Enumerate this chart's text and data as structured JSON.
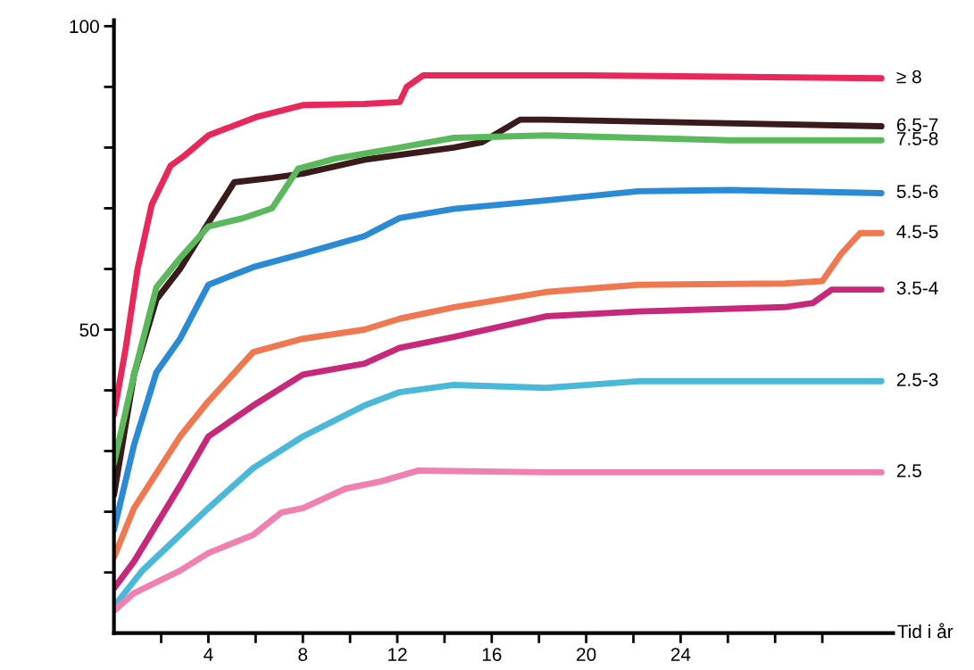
{
  "chart_data": {
    "type": "line",
    "xlabel": "Tid i år",
    "legend": false,
    "grid": false,
    "marker": "none",
    "line_style": "solid",
    "xlim": [
      0,
      33
    ],
    "ylim": [
      0,
      101
    ],
    "xticks": [
      {
        "value": 2,
        "label": null
      },
      4,
      {
        "value": 6,
        "label": null
      },
      8,
      {
        "value": 10,
        "label": null
      },
      12,
      {
        "value": 14,
        "label": null
      },
      16,
      {
        "value": 18,
        "label": null
      },
      20,
      {
        "value": 22,
        "label": null
      },
      24,
      {
        "value": 26,
        "label": null
      },
      {
        "value": 28,
        "label": null
      },
      {
        "value": 30,
        "label": null
      }
    ],
    "yticks": [
      {
        "value": 10,
        "label": null
      },
      {
        "value": 20,
        "label": null
      },
      {
        "value": 30,
        "label": null
      },
      {
        "value": 40,
        "label": null
      },
      50,
      {
        "value": 60,
        "label": null
      },
      {
        "value": 70,
        "label": null
      },
      {
        "value": 80,
        "label": null
      },
      {
        "value": 90,
        "label": null
      },
      100
    ],
    "series": [
      {
        "name": "≥ 8",
        "color": "#e8285a",
        "x": [
          0,
          0.5,
          1,
          1.6,
          2.4,
          3,
          4,
          6,
          8,
          10.6,
          12.1,
          12.4,
          13.1,
          20,
          32.5
        ],
        "values": [
          36,
          47,
          60,
          70.6,
          77,
          78.7,
          82,
          85,
          87,
          87.2,
          87.5,
          90,
          91.9,
          91.9,
          91.4
        ]
      },
      {
        "name": "6.5-7",
        "color": "#3a1a1a",
        "x": [
          0,
          0.85,
          1.8,
          2.8,
          4,
          5.1,
          6.7,
          8,
          10.6,
          14.4,
          15.6,
          17.2,
          18.3,
          32.5
        ],
        "values": [
          22.8,
          42.6,
          55,
          60,
          67.6,
          74.3,
          75,
          75.7,
          78,
          80,
          80.9,
          84.6,
          84.6,
          83.5
        ]
      },
      {
        "name": "7.5-8",
        "color": "#5cb85c",
        "x": [
          0,
          0.85,
          1.8,
          2.8,
          4,
          5.5,
          6.7,
          7.8,
          9.4,
          10.6,
          12.1,
          14.4,
          18.3,
          22.2,
          26.1,
          32.5
        ],
        "values": [
          28,
          42.6,
          57,
          61.8,
          67,
          68.4,
          70,
          76.5,
          78.2,
          79,
          80,
          81.6,
          82,
          81.6,
          81.2,
          81.2
        ]
      },
      {
        "name": "5.5-6",
        "color": "#2a8ad4",
        "x": [
          0,
          0.85,
          1.8,
          2.8,
          4,
          5.9,
          8,
          10.6,
          12.1,
          14.4,
          18.3,
          22.2,
          26.1,
          32.5
        ],
        "values": [
          17,
          31,
          43,
          48.5,
          57.4,
          60.3,
          62.5,
          65.4,
          68.4,
          69.9,
          71.3,
          72.8,
          73,
          72.5
        ]
      },
      {
        "name": "4.5-5",
        "color": "#f07850",
        "x": [
          0,
          0.85,
          2.8,
          4,
          5.9,
          8,
          10.6,
          12.1,
          14.4,
          18.3,
          22.2,
          28.4,
          30,
          30.8,
          31.6,
          32.5
        ],
        "values": [
          12.5,
          20.6,
          32.4,
          38.2,
          46.3,
          48.5,
          50,
          51.8,
          53.7,
          56.2,
          57.4,
          57.6,
          58,
          62.5,
          65.9,
          65.9
        ]
      },
      {
        "name": "3.5-4",
        "color": "#c8287a",
        "x": [
          0,
          0.85,
          2.8,
          4,
          5.9,
          8,
          10.6,
          12.1,
          14.4,
          18.3,
          22.2,
          28.4,
          29.6,
          30.4,
          32.5
        ],
        "values": [
          7.4,
          11.8,
          24.3,
          32.4,
          37.5,
          42.6,
          44.4,
          47,
          48.8,
          52.2,
          53,
          53.7,
          54.4,
          56.6,
          56.6
        ]
      },
      {
        "name": "2.5-3",
        "color": "#4ab8d8",
        "x": [
          0,
          1.2,
          4,
          5.9,
          8,
          10.6,
          12.1,
          14.4,
          18.3,
          22.2,
          32.5
        ],
        "values": [
          4.4,
          10.3,
          20.6,
          27.2,
          32.4,
          37.5,
          39.7,
          40.9,
          40.4,
          41.5,
          41.5
        ]
      },
      {
        "name": "2.5",
        "color": "#f080b0",
        "x": [
          0,
          0.85,
          2.8,
          4,
          5.9,
          7.1,
          8,
          9.8,
          11.3,
          12.9,
          18.3,
          32.5
        ],
        "values": [
          3.7,
          6.6,
          10.3,
          13.2,
          16.2,
          19.9,
          20.6,
          23.8,
          25,
          26.8,
          26.5,
          26.5
        ]
      }
    ]
  }
}
